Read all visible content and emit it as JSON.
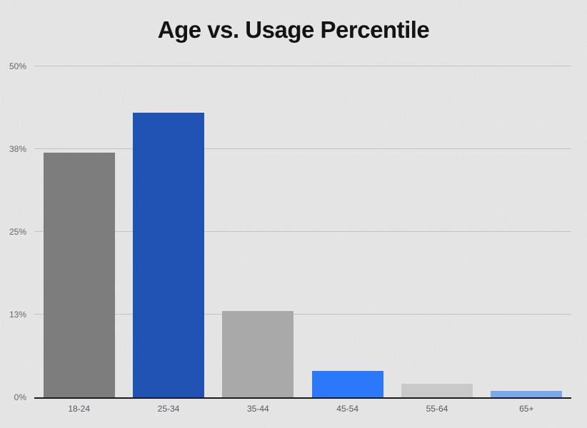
{
  "page": {
    "background_color": "#e8e8e8",
    "texture": "fine-grain paper noise"
  },
  "chart_data": {
    "type": "bar",
    "title": "Age vs. Usage Percentile",
    "categories": [
      "18-24",
      "25-34",
      "35-44",
      "45-54",
      "55-64",
      "65+"
    ],
    "values": [
      37,
      43,
      13,
      4,
      2,
      1
    ],
    "unit": "%",
    "bar_colors": [
      "#7d7d7d",
      "#2053b3",
      "#a9a9a9",
      "#2b79fa",
      "#c9c9c9",
      "#7aa8ef"
    ],
    "xlabel": "",
    "ylabel": "",
    "ylim": [
      0,
      50
    ],
    "yticks": [
      {
        "label": "0%",
        "value": 0
      },
      {
        "label": "13%",
        "value": 12.5
      },
      {
        "label": "25%",
        "value": 25
      },
      {
        "label": "38%",
        "value": 37.5
      },
      {
        "label": "50%",
        "value": 50
      }
    ],
    "grid": true,
    "legend": false,
    "colors": {
      "background": "#e8e8e8",
      "title": "#131313",
      "gridline": "#c3c3c3",
      "axis_line": "#1c1c1c",
      "y_tick_label": "#666666",
      "x_tick_label": "#54575d"
    }
  }
}
